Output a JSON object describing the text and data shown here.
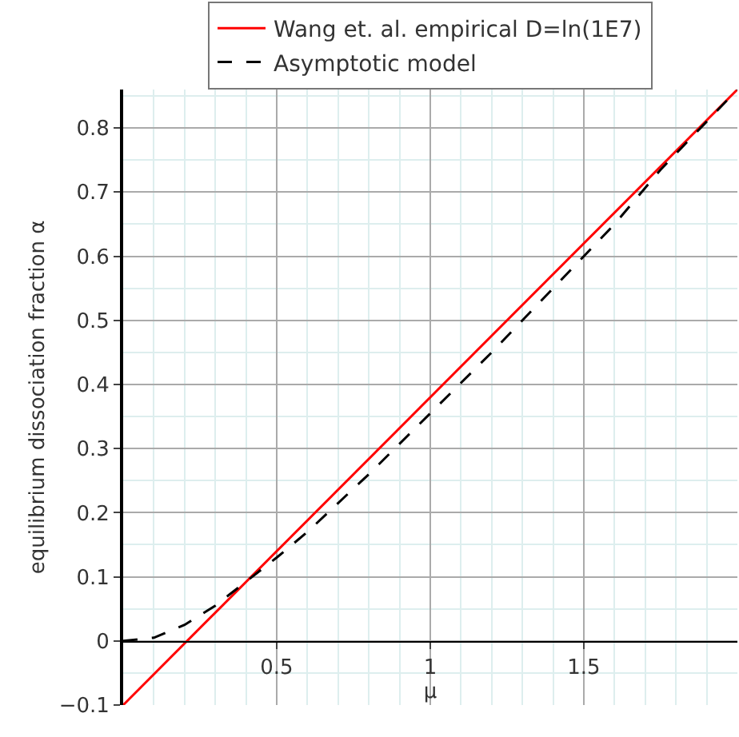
{
  "chart_data": {
    "type": "line",
    "xlabel": "μ",
    "ylabel": "equilibrium dissociation fraction α",
    "xlim": [
      0,
      2
    ],
    "ylim": [
      -0.1,
      0.86
    ],
    "xticks": [
      0.5,
      1,
      1.5
    ],
    "yticks": [
      {
        "value": -0.1,
        "label": "−0.1"
      },
      0,
      0.1,
      0.2,
      0.3,
      0.4,
      0.5,
      0.6,
      0.7,
      0.8
    ],
    "grid": true,
    "legend": "top",
    "series": [
      {
        "name": "Wang et. al. empirical D=ln(1E7)",
        "color": "#ff0000",
        "line_style": "solid",
        "x": [
          0,
          2
        ],
        "values": [
          -0.1,
          0.86
        ]
      },
      {
        "name": "Asymptotic model",
        "color": "#000000",
        "line_style": "dashed",
        "x": [
          0,
          0.1,
          0.2,
          0.3,
          0.42,
          0.5,
          0.6,
          0.8,
          1,
          1.2,
          1.4,
          1.6,
          1.75,
          1.9,
          2
        ],
        "values": [
          0,
          0.005,
          0.025,
          0.055,
          0.1,
          0.13,
          0.17,
          0.26,
          0.355,
          0.45,
          0.55,
          0.65,
          0.735,
          0.81,
          0.86
        ]
      }
    ]
  }
}
